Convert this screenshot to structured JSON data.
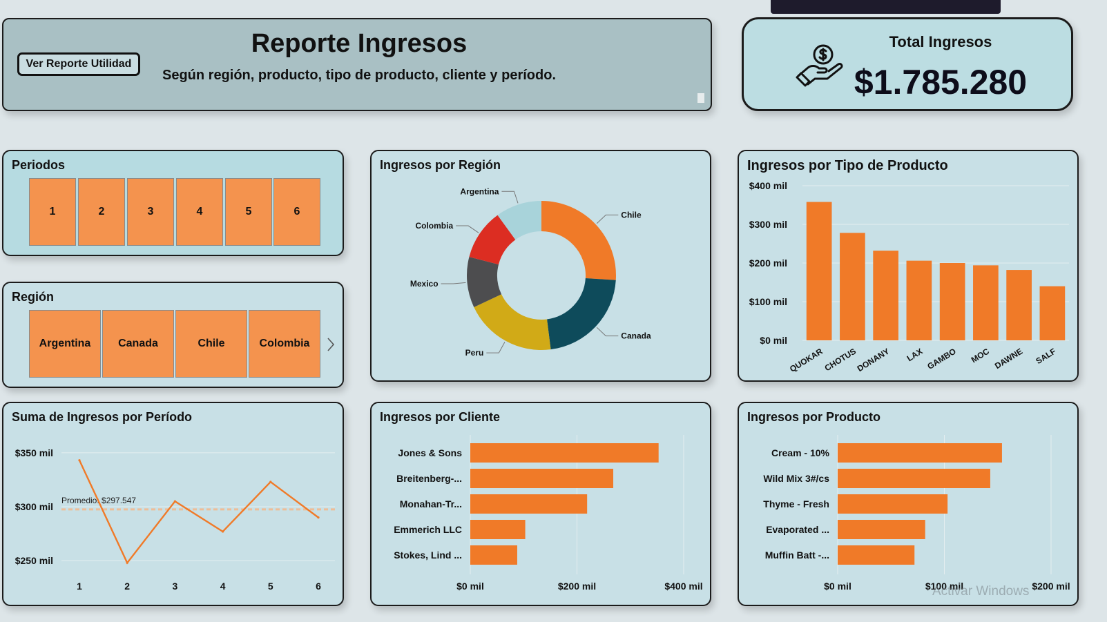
{
  "header": {
    "title": "Reporte Ingresos",
    "subtitle": "Según región, producto, tipo de producto, cliente y período.",
    "button_label": "Ver Reporte Utilidad"
  },
  "kpi": {
    "label": "Total Ingresos",
    "value": "$1.785.280",
    "icon": "money-hand-icon"
  },
  "periodos": {
    "title": "Periodos",
    "items": [
      "1",
      "2",
      "3",
      "4",
      "5",
      "6"
    ]
  },
  "region_slicer": {
    "title": "Región",
    "items": [
      "Argentina",
      "Canada",
      "Chile",
      "Colombia"
    ]
  },
  "colors": {
    "orange": "#f07a28",
    "tile": "#f4934e",
    "teal_dark": "#0e4b5b",
    "yellow": "#d1aa17",
    "gray": "#4d4d4f",
    "red": "#dc2d22",
    "light_blue": "#a8d3da"
  },
  "chart_data": [
    {
      "type": "pie",
      "title": "Ingresos por Región",
      "categories": [
        "Chile",
        "Canada",
        "Peru",
        "Mexico",
        "Colombia",
        "Argentina"
      ],
      "values": [
        26,
        22,
        20,
        11,
        11,
        10
      ]
    },
    {
      "type": "bar",
      "title": "Ingresos por Tipo de Producto",
      "categories": [
        "QUOKAR",
        "CHOTUS",
        "DONANY",
        "LAX",
        "GAMBO",
        "MOC",
        "DAWNE",
        "SALF"
      ],
      "values": [
        358,
        278,
        232,
        206,
        200,
        194,
        182,
        140
      ],
      "ylim": [
        0,
        400
      ],
      "yticks": [
        "$0 mil",
        "$100 mil",
        "$200 mil",
        "$300 mil",
        "$400 mil"
      ]
    },
    {
      "type": "line",
      "title": "Suma de Ingresos por Período",
      "x": [
        "1",
        "2",
        "3",
        "4",
        "5",
        "6"
      ],
      "values": [
        343,
        248,
        305,
        277,
        323,
        290
      ],
      "ylim": [
        245,
        355
      ],
      "yticks": [
        "$250 mil",
        "$300 mil",
        "$350 mil"
      ],
      "average": 297.547,
      "average_label": "Promedio: $297.547"
    },
    {
      "type": "bar",
      "orientation": "horizontal",
      "title": "Ingresos por Cliente",
      "categories": [
        "Jones & Sons",
        "Breitenberg-...",
        "Monahan-Tr...",
        "Emmerich LLC",
        "Stokes, Lind ..."
      ],
      "values": [
        353,
        268,
        219,
        103,
        88
      ],
      "xlim": [
        0,
        400
      ],
      "xticks": [
        "$0 mil",
        "$200 mil",
        "$400 mil"
      ]
    },
    {
      "type": "bar",
      "orientation": "horizontal",
      "title": "Ingresos por Producto",
      "categories": [
        "Cream - 10%",
        "Wild Mix 3#/cs",
        "Thyme - Fresh",
        "Evaporated ...",
        "Muffin Batt -..."
      ],
      "values": [
        154,
        143,
        103,
        82,
        72
      ],
      "xlim": [
        0,
        200
      ],
      "xticks": [
        "$0 mil",
        "$100 mil",
        "$200 mil"
      ]
    }
  ],
  "watermark": "Activar Windows"
}
